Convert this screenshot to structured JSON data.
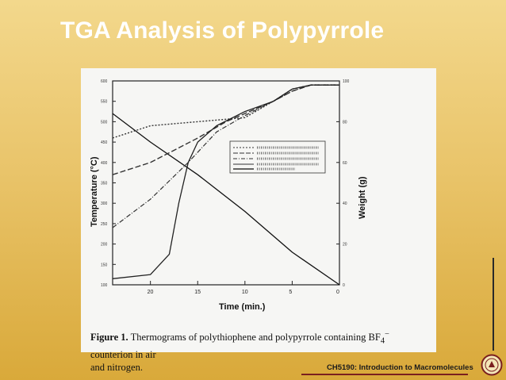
{
  "slide": {
    "title": "TGA Analysis of Polypyrrole",
    "footer": "CH5190: Introduction to Macromolecules",
    "accent": "#7a1f1f"
  },
  "figure": {
    "caption_bold": "Figure 1.",
    "caption_text": "Thermograms of polythiophene and polypyrrole containing BF",
    "caption_sub": "4",
    "caption_sup": "−",
    "caption_tail": " counterion in air",
    "caption_line2": "and nitrogen.",
    "x_axis_label": "Time (min.)",
    "y_left_label": "Temperature (°C)",
    "y_right_label": "Weight (g)",
    "x_ticks": [
      "20",
      "15",
      "10",
      "5",
      "0"
    ],
    "y_left_ticks": [
      "600",
      "550",
      "500",
      "450",
      "400",
      "350",
      "300",
      "250",
      "200",
      "150",
      "100"
    ],
    "y_right_ticks": [
      "100",
      "80",
      "60",
      "40",
      "20",
      "0"
    ]
  },
  "chart_data": {
    "type": "line",
    "xlabel": "Time (min.)",
    "ylabel": "Temperature (°C)",
    "y2label": "Weight (g)",
    "xlim": [
      24,
      0
    ],
    "ylim": [
      100,
      600
    ],
    "y2lim": [
      0,
      100
    ],
    "series": [
      {
        "style": "temperature",
        "axis": "left",
        "x": [
          24,
          20,
          15,
          10,
          5,
          0
        ],
        "y": [
          520,
          450,
          370,
          280,
          180,
          100
        ]
      },
      {
        "style": "dashed-fine",
        "axis": "right",
        "x": [
          24,
          20,
          15,
          10,
          7,
          5,
          3,
          0
        ],
        "y": [
          72,
          78,
          80,
          82,
          90,
          96,
          98,
          98
        ]
      },
      {
        "style": "dashed-long",
        "axis": "right",
        "x": [
          24,
          20,
          15,
          12,
          10,
          7,
          5,
          3,
          0
        ],
        "y": [
          54,
          60,
          72,
          80,
          84,
          90,
          95,
          98,
          98
        ]
      },
      {
        "style": "dash-dot",
        "axis": "right",
        "x": [
          24,
          20,
          16,
          13,
          10,
          7,
          5,
          3,
          0
        ],
        "y": [
          28,
          42,
          60,
          75,
          83,
          90,
          95,
          98,
          98
        ]
      },
      {
        "style": "solid-thin",
        "axis": "right",
        "x": [
          24,
          20,
          18,
          17,
          16,
          15,
          13,
          10,
          7,
          5,
          3,
          0
        ],
        "y": [
          3,
          5,
          15,
          40,
          60,
          70,
          78,
          85,
          90,
          96,
          98,
          98
        ]
      }
    ]
  }
}
